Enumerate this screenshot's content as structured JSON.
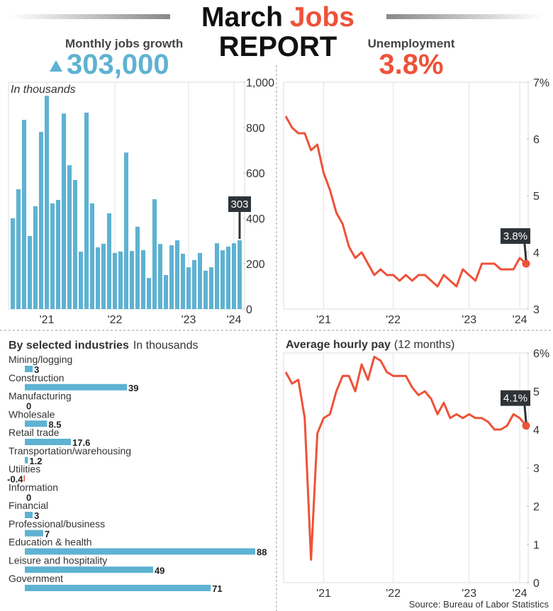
{
  "header": {
    "title_first": "March",
    "title_highlight": "Jobs",
    "title_second_line": "REPORT",
    "jobs_label": "Monthly jobs growth",
    "jobs_value": "303,000",
    "unemployment_label": "Unemployment",
    "unemployment_value": "3.8%"
  },
  "source": "Source: Bureau of Labor Statistics",
  "chart_data": [
    {
      "type": "bar",
      "subtitle": "In thousands",
      "categories": [
        null,
        null,
        null,
        null,
        null,
        null,
        "'21",
        null,
        null,
        null,
        null,
        null,
        null,
        null,
        null,
        null,
        null,
        null,
        "'22",
        null,
        null,
        null,
        null,
        null,
        null,
        null,
        null,
        null,
        null,
        null,
        null,
        "'23",
        null,
        null,
        null,
        null,
        null,
        null,
        null,
        "'24",
        null
      ],
      "values": [
        400,
        528,
        834,
        322,
        453,
        781,
        940,
        466,
        481,
        862,
        634,
        569,
        253,
        866,
        466,
        272,
        288,
        422,
        247,
        254,
        690,
        256,
        363,
        260,
        137,
        484,
        287,
        150,
        281,
        303,
        244,
        184,
        216,
        247,
        169,
        184,
        290,
        259,
        275,
        290,
        303
      ],
      "color": "#5eb2d2",
      "ylim": [
        0,
        1000
      ],
      "yticks": [
        0,
        200,
        400,
        600,
        800,
        {
          "value": 1000,
          "label": "1,000"
        }
      ],
      "annotation": "303"
    },
    {
      "type": "line",
      "categories": [
        null,
        null,
        null,
        null,
        null,
        null,
        "'21",
        null,
        null,
        null,
        null,
        null,
        null,
        null,
        null,
        null,
        null,
        "'22",
        null,
        null,
        null,
        null,
        null,
        null,
        null,
        null,
        null,
        null,
        null,
        "'23",
        null,
        null,
        null,
        null,
        null,
        null,
        null,
        "'24",
        null
      ],
      "values": [
        6.4,
        6.2,
        6.1,
        6.1,
        5.8,
        5.9,
        5.4,
        5.1,
        4.7,
        4.5,
        4.1,
        3.9,
        4.0,
        3.8,
        3.6,
        3.7,
        3.6,
        3.6,
        3.5,
        3.6,
        3.5,
        3.6,
        3.6,
        3.5,
        3.4,
        3.6,
        3.5,
        3.4,
        3.7,
        3.6,
        3.5,
        3.8,
        3.8,
        3.8,
        3.7,
        3.7,
        3.7,
        3.9,
        3.8
      ],
      "color": "#ee5238",
      "ylim": [
        3,
        7
      ],
      "yticks": [
        3,
        4,
        5,
        6,
        {
          "value": 7,
          "label": "7%"
        }
      ],
      "annotation": "3.8%"
    },
    {
      "type": "bar",
      "orientation": "horizontal",
      "title": "By selected industries",
      "subtitle": "In thousands",
      "categories": [
        "Mining/logging",
        "Construction",
        "Manufacturing",
        "Wholesale",
        "Retail trade",
        "Transportation/warehousing",
        "Utilities",
        "Information",
        "Financial",
        "Professional/business",
        "Education & health",
        "Leisure and hospitality",
        "Government"
      ],
      "values": [
        3,
        39,
        0,
        8.5,
        17.6,
        1.2,
        -0.4,
        0,
        3,
        7,
        88,
        49,
        71
      ],
      "color": "#5eb2d2",
      "negative_color": "#ee5238"
    },
    {
      "type": "line",
      "title": "Average hourly pay",
      "subtitle": "(12 months)",
      "categories": [
        null,
        null,
        null,
        null,
        null,
        null,
        "'21",
        null,
        null,
        null,
        null,
        null,
        null,
        null,
        null,
        null,
        null,
        "'22",
        null,
        null,
        null,
        null,
        null,
        null,
        null,
        null,
        null,
        null,
        null,
        "'23",
        null,
        null,
        null,
        null,
        null,
        null,
        null,
        "'24",
        null
      ],
      "values": [
        5.5,
        5.2,
        5.3,
        4.3,
        0.6,
        3.9,
        4.3,
        4.4,
        5.0,
        5.4,
        5.4,
        5.0,
        5.7,
        5.3,
        5.9,
        5.8,
        5.5,
        5.4,
        5.4,
        5.4,
        5.1,
        4.9,
        5.0,
        4.8,
        4.4,
        4.7,
        4.3,
        4.4,
        4.3,
        4.4,
        4.3,
        4.3,
        4.2,
        4.0,
        4.0,
        4.1,
        4.4,
        4.3,
        4.1
      ],
      "color": "#ee5238",
      "ylim": [
        0,
        6
      ],
      "yticks": [
        0,
        1,
        2,
        3,
        4,
        5,
        {
          "value": 6,
          "label": "6%"
        }
      ],
      "annotation": "4.1%"
    }
  ]
}
